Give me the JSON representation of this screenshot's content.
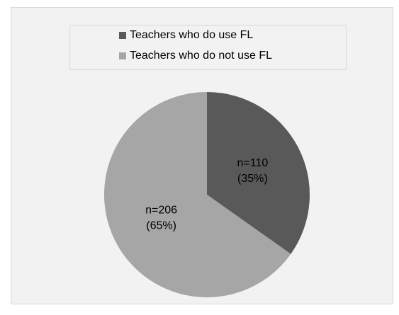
{
  "chart_data": {
    "type": "pie",
    "categories": [
      "Teachers who do use FL",
      "Teachers who do not use FL"
    ],
    "values": [
      110,
      206
    ],
    "value_labels": [
      "n=110",
      "n=206"
    ],
    "shares": [
      35,
      65
    ],
    "share_labels": [
      "(35%)",
      "(65%)"
    ],
    "colors": [
      "#595959",
      "#a6a6a6"
    ],
    "legend": "top"
  }
}
